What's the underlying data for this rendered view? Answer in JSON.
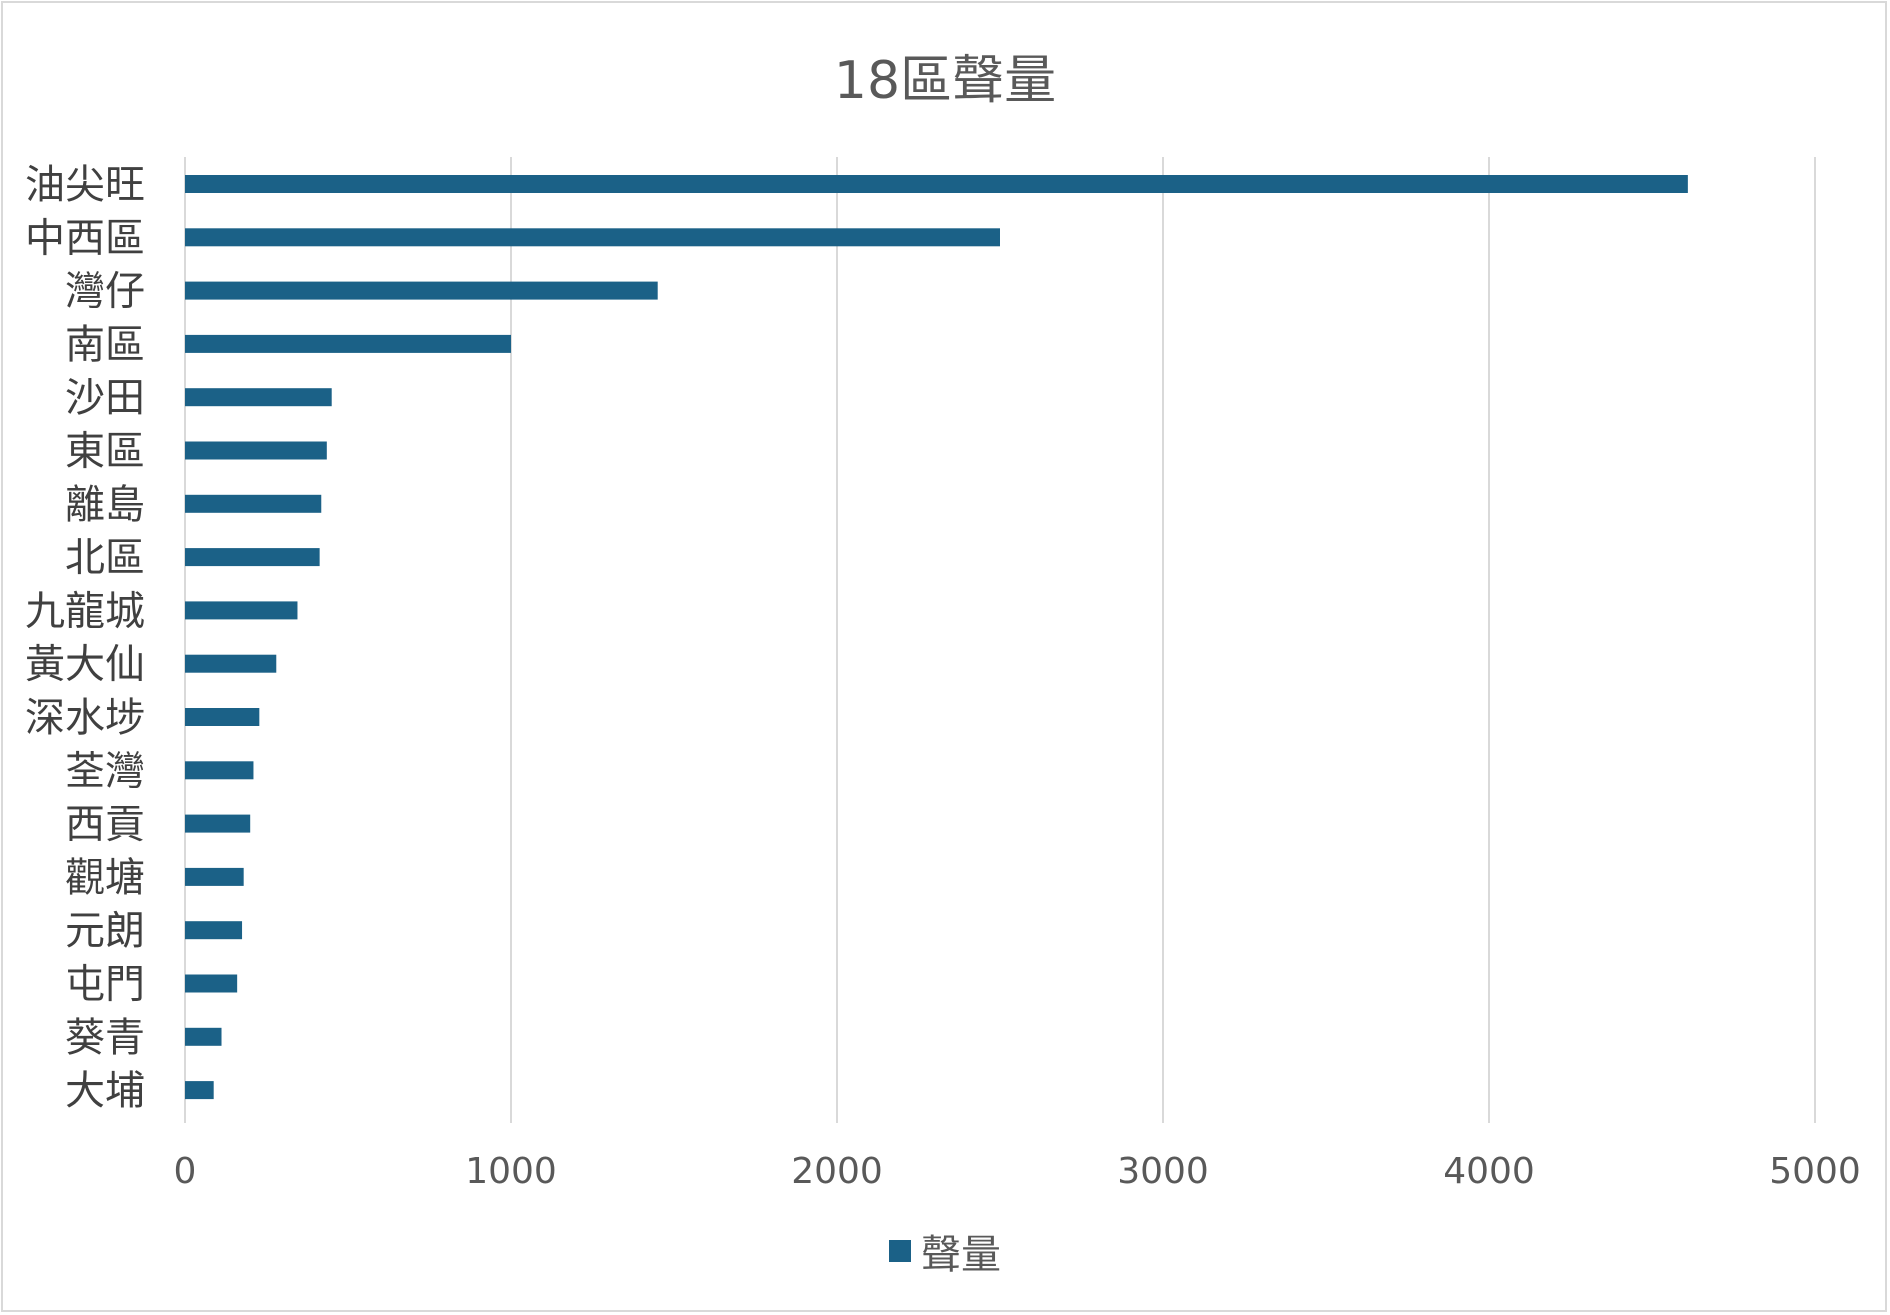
{
  "chart_data": {
    "type": "bar",
    "orientation": "horizontal",
    "title": "18區聲量",
    "xlabel": "",
    "ylabel": "",
    "categories": [
      "油尖旺",
      "中西區",
      "灣仔",
      "南區",
      "沙田",
      "東區",
      "離島",
      "北區",
      "九龍城",
      "黃大仙",
      "深水埗",
      "荃灣",
      "西貢",
      "觀塘",
      "元朗",
      "屯門",
      "葵青",
      "大埔"
    ],
    "series": [
      {
        "name": "聲量",
        "color": "#1b6187",
        "values": [
          4610,
          2500,
          1450,
          1000,
          450,
          435,
          418,
          413,
          345,
          280,
          228,
          210,
          200,
          180,
          175,
          160,
          112,
          88
        ]
      }
    ],
    "xlim": [
      0,
      5000
    ],
    "xticks": [
      "0",
      "1000",
      "2000",
      "3000",
      "4000",
      "5000"
    ],
    "grid": true,
    "legend_position": "bottom"
  }
}
